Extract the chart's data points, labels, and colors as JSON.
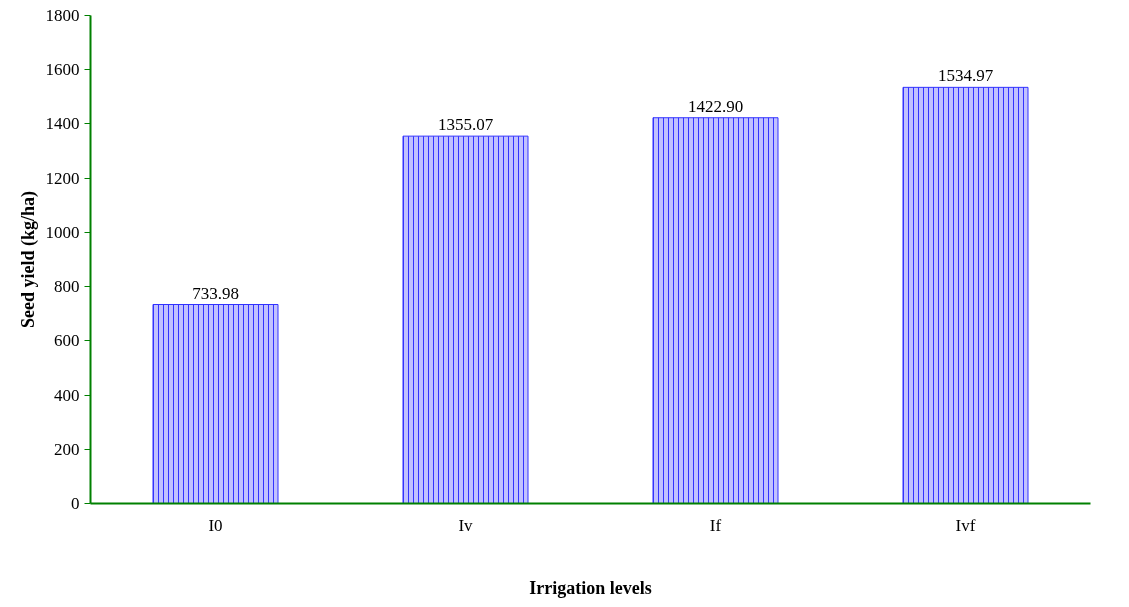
{
  "chart_data": {
    "type": "bar",
    "xlabel": "Irrigation levels",
    "ylabel": "Seed yield (kg/ha)",
    "categories": [
      "I0",
      "Iv",
      "If",
      "Ivf"
    ],
    "values": [
      733.98,
      1355.07,
      1422.9,
      1534.97
    ],
    "value_labels": [
      "733.98",
      "1355.07",
      "1422.90",
      "1534.97"
    ],
    "color": "#3333ff",
    "ylim": [
      0,
      1800
    ],
    "yticks": [
      0,
      200,
      400,
      600,
      800,
      1000,
      1200,
      1400,
      1600,
      1800
    ],
    "grid": false
  }
}
